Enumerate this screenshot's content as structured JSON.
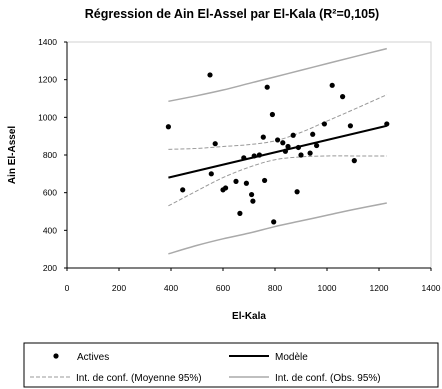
{
  "chart_data": {
    "type": "scatter",
    "title": "Régression de Ain El-Assel par El-Kala (R²=0,105)",
    "xlabel": "El-Kala",
    "ylabel": "Ain El-Assel",
    "xlim": [
      0,
      1400
    ],
    "ylim": [
      200,
      1400
    ],
    "xticks": [
      "0",
      "200",
      "400",
      "600",
      "800",
      "1000",
      "1200",
      "1400"
    ],
    "yticks": [
      "200",
      "400",
      "600",
      "800",
      "1000",
      "1200",
      "1400"
    ],
    "grid": false,
    "legend_position": "bottom",
    "colors": {
      "points": "#000000",
      "model": "#000000",
      "ci_mean": "#999999",
      "ci_obs": "#aaaaaa"
    },
    "series": [
      {
        "name": "Actives",
        "points": [
          [
            390,
            950
          ],
          [
            445,
            615
          ],
          [
            550,
            1225
          ],
          [
            555,
            700
          ],
          [
            570,
            860
          ],
          [
            600,
            615
          ],
          [
            610,
            625
          ],
          [
            650,
            660
          ],
          [
            665,
            490
          ],
          [
            680,
            785
          ],
          [
            690,
            650
          ],
          [
            710,
            590
          ],
          [
            715,
            555
          ],
          [
            720,
            795
          ],
          [
            740,
            800
          ],
          [
            755,
            895
          ],
          [
            760,
            665
          ],
          [
            770,
            1160
          ],
          [
            790,
            1015
          ],
          [
            795,
            445
          ],
          [
            810,
            880
          ],
          [
            830,
            865
          ],
          [
            840,
            820
          ],
          [
            850,
            845
          ],
          [
            870,
            905
          ],
          [
            885,
            605
          ],
          [
            890,
            840
          ],
          [
            900,
            800
          ],
          [
            935,
            810
          ],
          [
            945,
            910
          ],
          [
            960,
            850
          ],
          [
            990,
            965
          ],
          [
            1020,
            1170
          ],
          [
            1060,
            1110
          ],
          [
            1090,
            955
          ],
          [
            1105,
            770
          ],
          [
            1230,
            965
          ]
        ]
      },
      {
        "name": "Modèle",
        "x": [
          390,
          1230
        ],
        "y": [
          680,
          955
        ]
      },
      {
        "name": "Int. de conf. (Moyenne 95%)",
        "x": [
          390,
          500,
          600,
          700,
          800,
          900,
          1000,
          1100,
          1230
        ],
        "upper": [
          830,
          835,
          845,
          855,
          875,
          920,
          980,
          1040,
          1120
        ],
        "lower": [
          530,
          610,
          680,
          735,
          775,
          790,
          795,
          795,
          795
        ]
      },
      {
        "name": "Int. de conf. (Obs. 95%)",
        "x": [
          390,
          500,
          600,
          700,
          800,
          900,
          1000,
          1100,
          1230
        ],
        "upper": [
          1085,
          1115,
          1145,
          1180,
          1215,
          1250,
          1285,
          1320,
          1365
        ],
        "lower": [
          275,
          320,
          355,
          385,
          420,
          450,
          480,
          510,
          545
        ]
      }
    ]
  }
}
